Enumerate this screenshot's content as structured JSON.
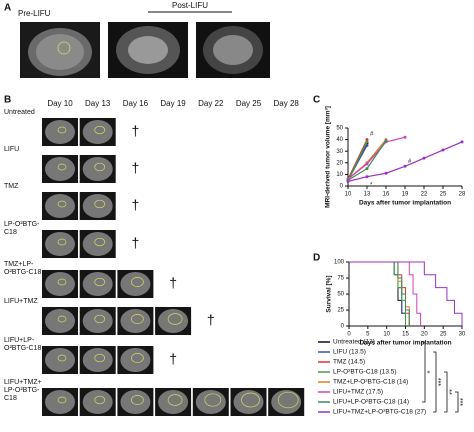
{
  "panel_a": {
    "label": "A",
    "pre": "Pre-LIFU",
    "post": "Post-LIFU"
  },
  "panel_b": {
    "label": "B",
    "days": [
      "Day 10",
      "Day 13",
      "Day 16",
      "Day 19",
      "Day 22",
      "Day 25",
      "Day 28"
    ],
    "rows": [
      {
        "name_lines": [
          "Untreated"
        ],
        "color": "#111111",
        "images": 2,
        "death": "†"
      },
      {
        "name_lines": [
          "LIFU"
        ],
        "color": "#3b4cc0",
        "images": 2,
        "death": "†"
      },
      {
        "name_lines": [
          "TMZ"
        ],
        "color": "#e03030",
        "images": 2,
        "death": "†"
      },
      {
        "name_lines": [
          "LP-O²BTG-",
          "C18"
        ],
        "color": "#40a040",
        "images": 2,
        "death": "†"
      },
      {
        "name_lines": [
          "TMZ+LP-",
          "O²BTG-C18"
        ],
        "color": "#e07a20",
        "images": 3,
        "death": "†"
      },
      {
        "name_lines": [
          "LIFU+TMZ"
        ],
        "color": "#d040c0",
        "images": 4,
        "death": "†"
      },
      {
        "name_lines": [
          "LIFU+LP-",
          "O²BTG-C18"
        ],
        "color": "#3a8a5a",
        "images": 3,
        "death": "†"
      },
      {
        "name_lines": [
          "LIFU+TMZ+",
          "LP-O²BTG-",
          "C18"
        ],
        "color": "#9b30c8",
        "images": 7
      }
    ]
  },
  "chart_data": [
    {
      "type": "line",
      "label": "C",
      "y_label": "MRI-derived tumor volume [mm³]",
      "x_label": "Days after tumor implantation",
      "x": [
        10,
        13,
        16,
        19,
        22,
        25,
        28
      ],
      "xlim": [
        10,
        28
      ],
      "xticks": [
        10,
        13,
        16,
        19,
        22,
        25,
        28
      ],
      "ylim": [
        0,
        50
      ],
      "yticks": [
        0,
        10,
        20,
        30,
        40,
        50
      ],
      "series": [
        {
          "color": "#111111",
          "values": [
            5,
            37,
            null,
            null,
            null,
            null,
            null
          ]
        },
        {
          "color": "#3b4cc0",
          "values": [
            5,
            35,
            null,
            null,
            null,
            null,
            null
          ]
        },
        {
          "color": "#e03030",
          "values": [
            6,
            40,
            null,
            null,
            null,
            null,
            null
          ]
        },
        {
          "color": "#40a040",
          "values": [
            5,
            38,
            null,
            null,
            null,
            null,
            null
          ]
        },
        {
          "color": "#e07a20",
          "values": [
            6,
            20,
            40,
            null,
            null,
            null,
            null
          ]
        },
        {
          "color": "#d040c0",
          "values": [
            6,
            19,
            38,
            42,
            null,
            null,
            null
          ]
        },
        {
          "color": "#3a8a5a",
          "values": [
            5,
            15,
            39,
            null,
            null,
            null,
            null
          ]
        },
        {
          "color": "#9b30c8",
          "values": [
            4,
            8,
            11,
            17,
            24,
            31,
            38
          ]
        }
      ],
      "annotations": [
        {
          "text": "#",
          "x": 13,
          "y": 45
        },
        {
          "text": "*",
          "x": 13,
          "y": 1
        },
        {
          "text": "#",
          "x": 19,
          "y": 21
        }
      ]
    },
    {
      "type": "step",
      "label": "D",
      "y_label": "Survival [%]",
      "x_label": "Days after tumor implantation",
      "xlim": [
        0,
        30
      ],
      "xticks": [
        0,
        5,
        10,
        15,
        20,
        25,
        30
      ],
      "ylim": [
        0,
        100
      ],
      "yticks": [
        0,
        25,
        50,
        75,
        100
      ],
      "series": [
        {
          "name": "Untreated (13)",
          "color": "#111111",
          "x": [
            0,
            12,
            13,
            14,
            15
          ],
          "values": [
            100,
            80,
            40,
            20,
            0
          ]
        },
        {
          "name": "LIFU (13.5)",
          "color": "#3b4cc0",
          "x": [
            0,
            13,
            14,
            15
          ],
          "values": [
            100,
            60,
            20,
            0
          ]
        },
        {
          "name": "TMZ (14.5)",
          "color": "#e03030",
          "x": [
            0,
            13,
            14,
            15,
            16
          ],
          "values": [
            100,
            80,
            60,
            20,
            0
          ]
        },
        {
          "name": "LP-O²BTG-C18 (13.5)",
          "color": "#40a040",
          "x": [
            0,
            12,
            13,
            14,
            15
          ],
          "values": [
            100,
            80,
            60,
            40,
            0
          ]
        },
        {
          "name": "TMZ+LP-O²BTG-C18 (14)",
          "color": "#e07a20",
          "x": [
            0,
            13,
            14,
            15,
            16
          ],
          "values": [
            100,
            70,
            50,
            30,
            0
          ]
        },
        {
          "name": "LIFU+TMZ (17.5)",
          "color": "#d040c0",
          "x": [
            0,
            16,
            17,
            18,
            19
          ],
          "values": [
            100,
            80,
            50,
            20,
            0
          ]
        },
        {
          "name": "LIFU+LP-O²BTG-C18 (14)",
          "color": "#3a8a5a",
          "x": [
            0,
            13,
            14,
            15,
            16
          ],
          "values": [
            100,
            75,
            50,
            25,
            0
          ]
        },
        {
          "name": "LIFU+TMZ+LP-O²BTG-C18 (27)",
          "color": "#9b30c8",
          "x": [
            0,
            20,
            23,
            26,
            28,
            30
          ],
          "values": [
            100,
            80,
            60,
            40,
            20,
            0
          ]
        }
      ],
      "significance": [
        "*",
        "***",
        "**",
        "***"
      ]
    }
  ]
}
